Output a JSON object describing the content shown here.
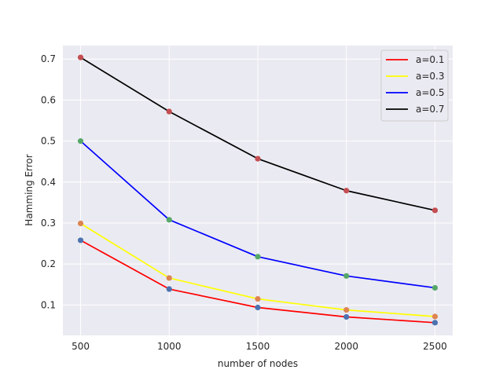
{
  "chart_data": {
    "type": "line",
    "title": "",
    "xlabel": "number of nodes",
    "ylabel": "Hamming Error",
    "x": [
      500,
      1000,
      1500,
      2000,
      2500
    ],
    "x_ticks": [
      "500",
      "1000",
      "1500",
      "2000",
      "2500"
    ],
    "y_ticks": [
      "0.1",
      "0.2",
      "0.3",
      "0.4",
      "0.5",
      "0.6",
      "0.7"
    ],
    "xlim": [
      400,
      2600
    ],
    "ylim": [
      0.026,
      0.733
    ],
    "grid": true,
    "legend_position": "top-right",
    "background_color": "#eaeaf2",
    "series": [
      {
        "name": "a=0.1",
        "color": "#ff0000",
        "marker_color": "#4c72b0",
        "values": [
          0.258,
          0.139,
          0.094,
          0.071,
          0.057
        ]
      },
      {
        "name": "a=0.3",
        "color": "#ffff00",
        "marker_color": "#dd8452",
        "values": [
          0.299,
          0.166,
          0.115,
          0.088,
          0.072
        ]
      },
      {
        "name": "a=0.5",
        "color": "#0000ff",
        "marker_color": "#55a868",
        "values": [
          0.5,
          0.308,
          0.218,
          0.171,
          0.142
        ]
      },
      {
        "name": "a=0.7",
        "color": "#000000",
        "marker_color": "#c44e52",
        "values": [
          0.704,
          0.572,
          0.457,
          0.379,
          0.331
        ]
      }
    ]
  }
}
